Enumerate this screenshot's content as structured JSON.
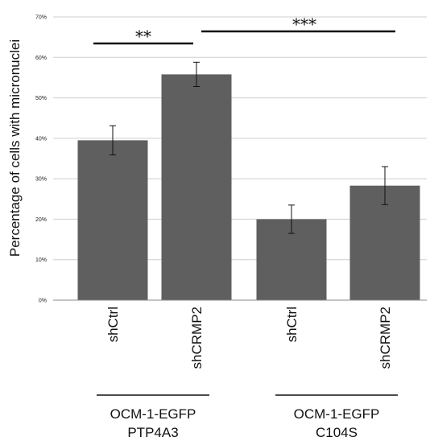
{
  "chart_data": {
    "type": "bar",
    "ylabel": "Percentage of cells with micronuclei",
    "ylim": [
      0,
      70
    ],
    "y_ticks": [
      "0%",
      "10%",
      "20%",
      "30%",
      "40%",
      "50%",
      "60%",
      "70%"
    ],
    "grid": true,
    "bar_color": "#5f5f5f",
    "grid_color": "#cfcfcf",
    "categories": [
      "shCtrl",
      "shCRMP2",
      "shCtrl",
      "shCRMP2"
    ],
    "values": [
      39.5,
      55.8,
      20.0,
      28.3
    ],
    "errors": [
      3.6,
      3.0,
      3.5,
      4.7
    ],
    "groups": [
      {
        "line1": "OCM-1-EGFP",
        "line2": "PTP4A3",
        "members": [
          0,
          1
        ]
      },
      {
        "line1": "OCM-1-EGFP",
        "line2": "C104S",
        "members": [
          2,
          3
        ]
      }
    ],
    "significance": [
      {
        "label": "**",
        "from": 0,
        "to": 1
      },
      {
        "label": "***",
        "from": 1,
        "to": 3
      }
    ]
  }
}
